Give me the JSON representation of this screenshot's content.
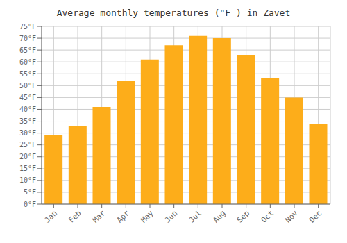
{
  "chart_data": {
    "type": "bar",
    "title": "Average monthly temperatures (°F ) in Zavet",
    "categories": [
      "Jan",
      "Feb",
      "Mar",
      "Apr",
      "May",
      "Jun",
      "Jul",
      "Aug",
      "Sep",
      "Oct",
      "Nov",
      "Dec"
    ],
    "values": [
      29,
      33,
      41,
      52,
      61,
      67,
      71,
      70,
      63,
      53,
      45,
      34
    ],
    "color": "#FDAD1A",
    "ylim": [
      0,
      75
    ],
    "yticks": [
      {
        "value": 0,
        "label": "0°F"
      },
      {
        "value": 5,
        "label": "5°F"
      },
      {
        "value": 10,
        "label": "10°F"
      },
      {
        "value": 15,
        "label": "15°F"
      },
      {
        "value": 20,
        "label": "20°F"
      },
      {
        "value": 25,
        "label": "25°F"
      },
      {
        "value": 30,
        "label": "30°F"
      },
      {
        "value": 35,
        "label": "35°F"
      },
      {
        "value": 40,
        "label": "40°F"
      },
      {
        "value": 45,
        "label": "45°F"
      },
      {
        "value": 50,
        "label": "50°F"
      },
      {
        "value": 55,
        "label": "55°F"
      },
      {
        "value": 60,
        "label": "60°F"
      },
      {
        "value": 65,
        "label": "65°F"
      },
      {
        "value": 70,
        "label": "70°F"
      },
      {
        "value": 75,
        "label": "75°F"
      }
    ],
    "grid": true
  }
}
